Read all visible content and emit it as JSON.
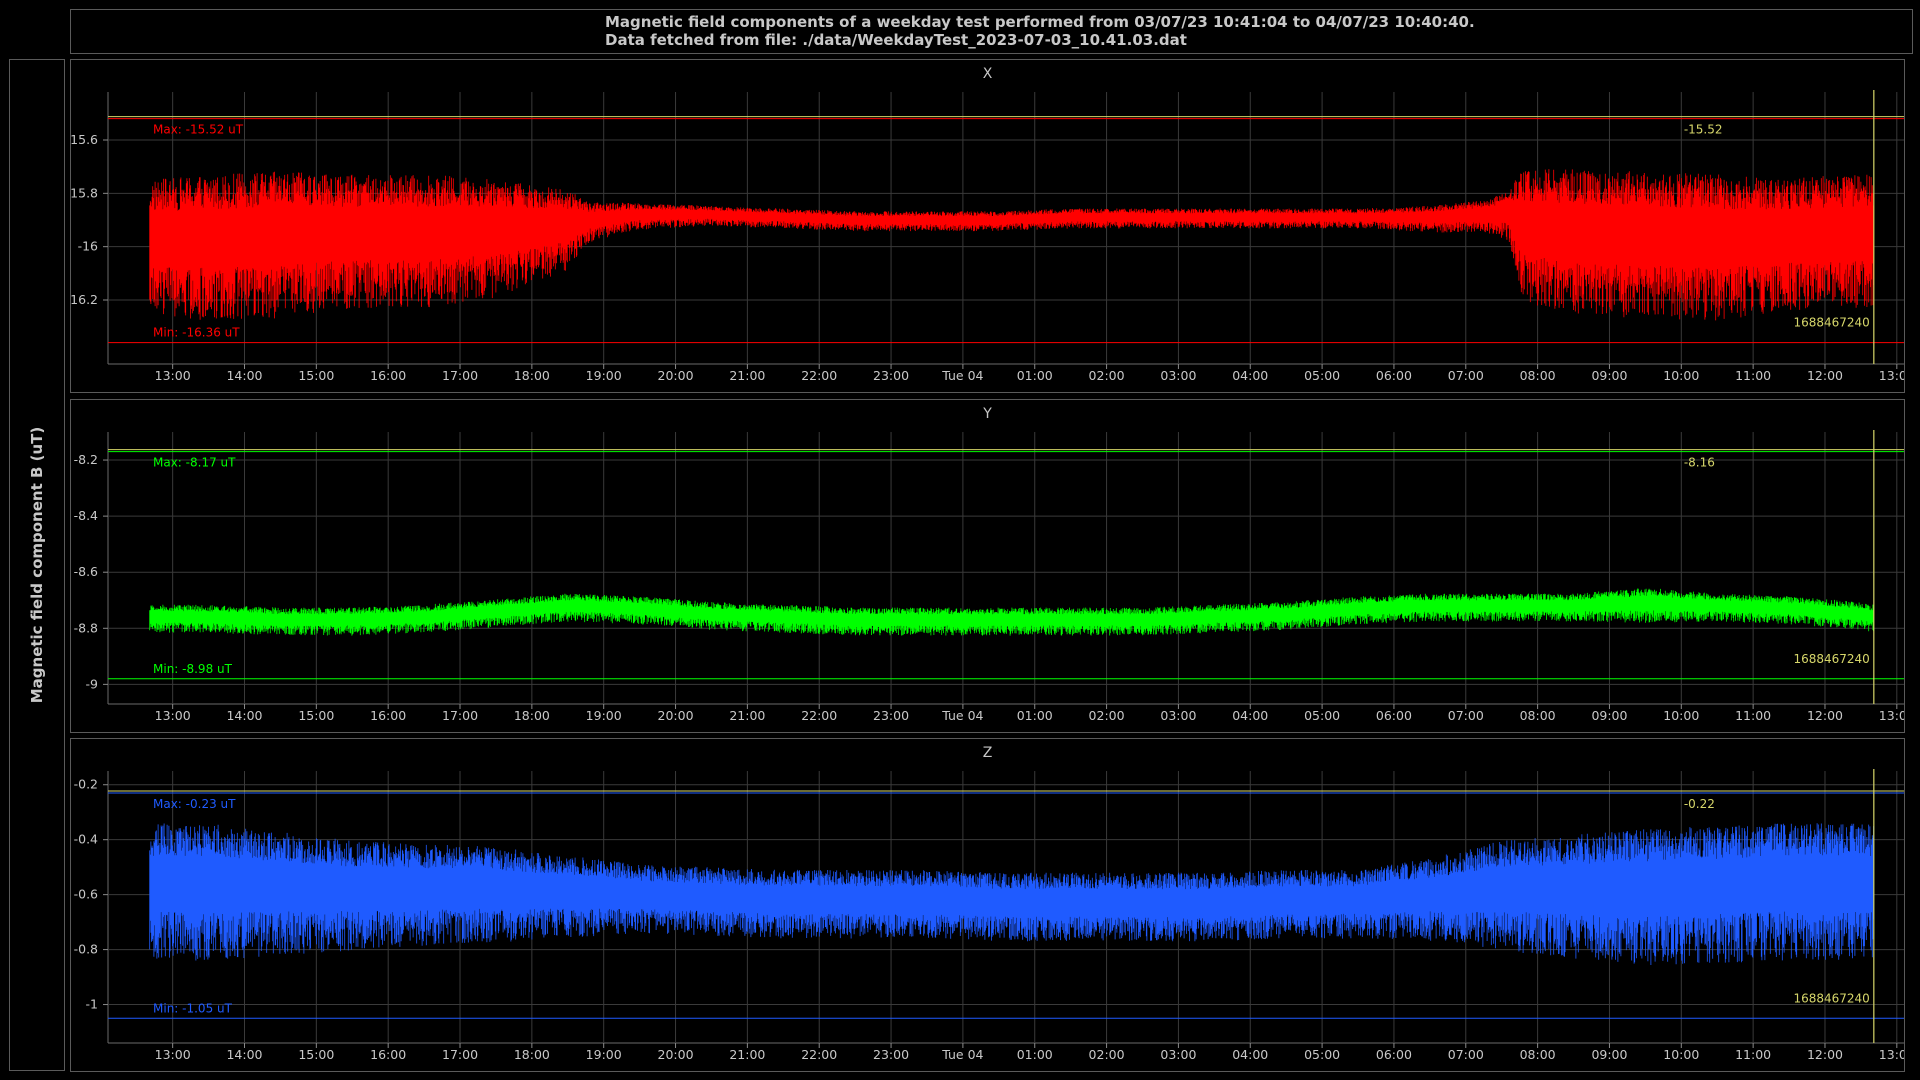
{
  "header": {
    "line1": "Magnetic field components of a weekday test performed from 03/07/23 10:41:04 to 04/07/23 10:40:40.",
    "line2": "Data fetched from file: ./data/WeekdayTest_2023-07-03_10.41.03.dat"
  },
  "ylabel": "Magnetic field component B (uT)",
  "colors": {
    "x": "#ff0000",
    "y": "#00ff00",
    "z": "#1f5bff",
    "marker": "#d6d66a",
    "grid": "#3a3a3a"
  },
  "chart_data": [
    {
      "type": "line",
      "title": "X",
      "ylim": [
        -16.44,
        -15.42
      ],
      "yticks": [
        -15.6,
        -15.8,
        -16,
        -16.2
      ],
      "ytick_labels": [
        "-15.6",
        "-15.8",
        "-16",
        "-16.2"
      ],
      "xlim_hours": [
        12.1,
        37.1
      ],
      "xticks": [
        "13:00",
        "14:00",
        "15:00",
        "16:00",
        "17:00",
        "18:00",
        "19:00",
        "20:00",
        "21:00",
        "22:00",
        "23:00",
        "Tue 04",
        "01:00",
        "02:00",
        "03:00",
        "04:00",
        "05:00",
        "06:00",
        "07:00",
        "08:00",
        "09:00",
        "10:00",
        "11:00",
        "12:00",
        "13:00"
      ],
      "grid": true,
      "max": -15.52,
      "min": -16.36,
      "max_label": "Max: -15.52 uT",
      "min_label": "Min: -16.36 uT",
      "cursor_value": "-15.52",
      "cursor_time": "1688467240",
      "series": [
        {
          "color": "#ff0000",
          "x": [
            12.68,
            13.5,
            14.5,
            15.5,
            16.5,
            17.5,
            18.5,
            18.8,
            19.5,
            20.5,
            21.5,
            22.5,
            23.5,
            24.5,
            25.5,
            26.5,
            27.5,
            28.5,
            29.5,
            30.5,
            31.3,
            31.6,
            31.8,
            32.5,
            33.5,
            34.5,
            35.5,
            36.5,
            36.68
          ],
          "center": [
            -15.97,
            -15.97,
            -15.96,
            -15.95,
            -15.95,
            -15.94,
            -15.92,
            -15.9,
            -15.88,
            -15.88,
            -15.89,
            -15.9,
            -15.9,
            -15.9,
            -15.89,
            -15.89,
            -15.89,
            -15.89,
            -15.89,
            -15.89,
            -15.88,
            -15.87,
            -15.93,
            -15.95,
            -15.96,
            -15.97,
            -15.96,
            -15.95,
            -15.95
          ],
          "amplitude": [
            0.2,
            0.22,
            0.22,
            0.2,
            0.2,
            0.18,
            0.12,
            0.06,
            0.04,
            0.03,
            0.03,
            0.03,
            0.03,
            0.03,
            0.03,
            0.03,
            0.03,
            0.03,
            0.03,
            0.04,
            0.05,
            0.08,
            0.2,
            0.22,
            0.22,
            0.22,
            0.2,
            0.2,
            0.2
          ]
        }
      ]
    },
    {
      "type": "line",
      "title": "Y",
      "ylim": [
        -9.07,
        -8.1
      ],
      "yticks": [
        -8.2,
        -8.4,
        -8.6,
        -8.8,
        -9
      ],
      "ytick_labels": [
        "-8.2",
        "-8.4",
        "-8.6",
        "-8.8",
        "-9"
      ],
      "xlim_hours": [
        12.1,
        37.1
      ],
      "xticks": [
        "13:00",
        "14:00",
        "15:00",
        "16:00",
        "17:00",
        "18:00",
        "19:00",
        "20:00",
        "21:00",
        "22:00",
        "23:00",
        "Tue 04",
        "01:00",
        "02:00",
        "03:00",
        "04:00",
        "05:00",
        "06:00",
        "07:00",
        "08:00",
        "09:00",
        "10:00",
        "11:00",
        "12:00",
        "13:00"
      ],
      "grid": true,
      "max": -8.17,
      "min": -8.98,
      "max_label": "Max: -8.17 uT",
      "min_label": "Min: -8.98 uT",
      "cursor_value": "-8.16",
      "cursor_time": "1688467240",
      "series": [
        {
          "color": "#00ff00",
          "x": [
            12.68,
            13.5,
            14.5,
            15.5,
            16.5,
            17.5,
            18.5,
            19.5,
            20.5,
            21.5,
            22.5,
            23.5,
            24.5,
            25.5,
            26.5,
            27.5,
            28.5,
            29.5,
            30.5,
            31.5,
            32.5,
            33.5,
            34.5,
            35.5,
            36.5,
            36.68
          ],
          "center": [
            -8.76,
            -8.76,
            -8.77,
            -8.77,
            -8.76,
            -8.74,
            -8.72,
            -8.73,
            -8.75,
            -8.76,
            -8.77,
            -8.77,
            -8.77,
            -8.77,
            -8.77,
            -8.76,
            -8.75,
            -8.73,
            -8.72,
            -8.72,
            -8.72,
            -8.71,
            -8.72,
            -8.73,
            -8.75,
            -8.76
          ],
          "amplitude": [
            0.04,
            0.04,
            0.04,
            0.04,
            0.04,
            0.04,
            0.04,
            0.04,
            0.04,
            0.04,
            0.04,
            0.04,
            0.04,
            0.04,
            0.04,
            0.04,
            0.04,
            0.04,
            0.04,
            0.04,
            0.04,
            0.05,
            0.04,
            0.04,
            0.04,
            0.04
          ]
        }
      ]
    },
    {
      "type": "line",
      "title": "Z",
      "ylim": [
        -1.14,
        -0.15
      ],
      "yticks": [
        -0.2,
        -0.4,
        -0.6,
        -0.8,
        -1
      ],
      "ytick_labels": [
        "-0.2",
        "-0.4",
        "-0.6",
        "-0.8",
        "-1"
      ],
      "xlim_hours": [
        12.1,
        37.1
      ],
      "xticks": [
        "13:00",
        "14:00",
        "15:00",
        "16:00",
        "17:00",
        "18:00",
        "19:00",
        "20:00",
        "21:00",
        "22:00",
        "23:00",
        "Tue 04",
        "01:00",
        "02:00",
        "03:00",
        "04:00",
        "05:00",
        "06:00",
        "07:00",
        "08:00",
        "09:00",
        "10:00",
        "11:00",
        "12:00",
        "13:00"
      ],
      "grid": true,
      "max": -0.23,
      "min": -1.05,
      "max_label": "Max: -0.23 uT",
      "min_label": "Min: -1.05 uT",
      "cursor_value": "-0.22",
      "cursor_time": "1688467240",
      "series": [
        {
          "color": "#1f5bff",
          "x": [
            12.68,
            13.5,
            14.5,
            15.5,
            16.5,
            17.5,
            18.5,
            19.5,
            20.5,
            21.5,
            22.5,
            23.5,
            24.5,
            25.5,
            26.5,
            27.5,
            28.5,
            29.5,
            30.5,
            31.5,
            32.5,
            33.5,
            34.5,
            35.5,
            36.5,
            36.68
          ],
          "center": [
            -0.56,
            -0.56,
            -0.57,
            -0.58,
            -0.58,
            -0.58,
            -0.59,
            -0.6,
            -0.61,
            -0.62,
            -0.62,
            -0.62,
            -0.63,
            -0.63,
            -0.63,
            -0.63,
            -0.62,
            -0.62,
            -0.6,
            -0.58,
            -0.58,
            -0.58,
            -0.57,
            -0.56,
            -0.56,
            -0.56
          ],
          "amplitude": [
            0.2,
            0.2,
            0.18,
            0.16,
            0.15,
            0.14,
            0.12,
            0.1,
            0.1,
            0.1,
            0.1,
            0.1,
            0.1,
            0.1,
            0.1,
            0.1,
            0.1,
            0.1,
            0.12,
            0.16,
            0.18,
            0.2,
            0.2,
            0.2,
            0.2,
            0.2
          ]
        }
      ]
    }
  ]
}
